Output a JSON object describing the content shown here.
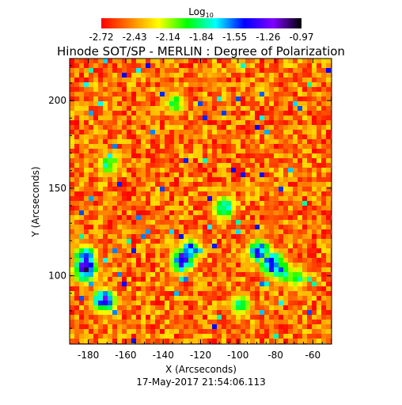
{
  "chart_data": {
    "type": "heatmap",
    "title": "Hinode SOT/SP - MERLIN : Degree of Polarization",
    "subtitle": "17-May-2017 21:54:06.113",
    "xlabel": "X (Arcseconds)",
    "ylabel": "Y (Arcseconds)",
    "xlim": [
      -190,
      -50
    ],
    "ylim": [
      61,
      224
    ],
    "x_ticks": [
      "-180",
      "-160",
      "-140",
      "-120",
      "-100",
      "-80",
      "-60"
    ],
    "x_tick_values": [
      -180,
      -160,
      -140,
      -120,
      -100,
      -80,
      -60
    ],
    "y_ticks": [
      "100",
      "150",
      "200"
    ],
    "y_tick_values": [
      100,
      150,
      200
    ],
    "colorbar": {
      "title_base": "Log",
      "title_sub": "10",
      "labels": [
        "-2.72",
        "-2.43",
        "-2.14",
        "-1.84",
        "-1.55",
        "-1.26",
        "-0.97"
      ],
      "min": -2.72,
      "max": -0.97,
      "colormap": [
        "#ff0000",
        "#ff7f00",
        "#ffff00",
        "#00ff00",
        "#00ffff",
        "#0000ff",
        "#8000ff",
        "#000000"
      ]
    },
    "grid": false,
    "high_polarization_regions": [
      {
        "x": -183,
        "y": 105,
        "level": -0.97
      },
      {
        "x": -183,
        "y": 112,
        "level": -1.3
      },
      {
        "x": -173,
        "y": 87,
        "level": -1.2
      },
      {
        "x": -131,
        "y": 110,
        "level": -1.1
      },
      {
        "x": -127,
        "y": 116,
        "level": -1.4
      },
      {
        "x": -83,
        "y": 108,
        "level": -1.1
      },
      {
        "x": -90,
        "y": 115,
        "level": -1.3
      },
      {
        "x": -78,
        "y": 104,
        "level": -1.5
      },
      {
        "x": -70,
        "y": 100,
        "level": -1.8
      },
      {
        "x": -109,
        "y": 140,
        "level": -1.6
      },
      {
        "x": -135,
        "y": 200,
        "level": -1.9
      },
      {
        "x": -170,
        "y": 165,
        "level": -1.8
      },
      {
        "x": -100,
        "y": 85,
        "level": -1.8
      }
    ]
  }
}
